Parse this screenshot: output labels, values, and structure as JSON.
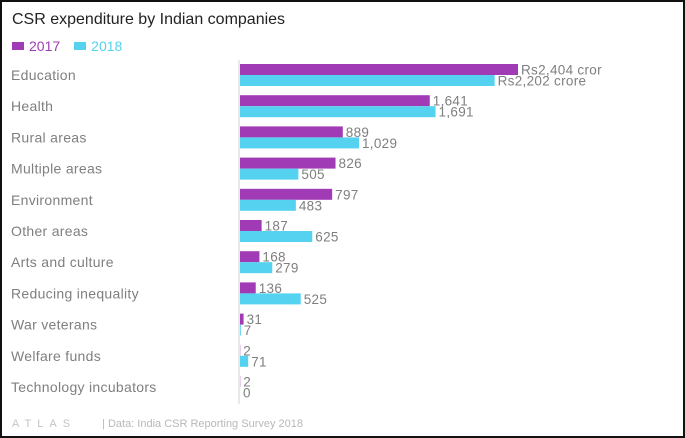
{
  "title": "CSR expenditure by Indian companies",
  "footer": {
    "logo": "ATLAS",
    "source": "| Data: India CSR Reporting Survey 2018"
  },
  "colors": {
    "2017": "#a13bb5",
    "2018": "#54d2f0"
  },
  "chart_data": {
    "type": "bar",
    "orientation": "horizontal",
    "title": "CSR expenditure by Indian companies",
    "categories": [
      "Education",
      "Health",
      "Rural areas",
      "Multiple areas",
      "Environment",
      "Other areas",
      "Arts and culture",
      "Reducing inequality",
      "War veterans",
      "Welfare funds",
      "Technology incubators"
    ],
    "series": [
      {
        "name": "2017",
        "color": "#a13bb5",
        "values": [
          2404,
          1641,
          889,
          826,
          797,
          187,
          168,
          136,
          31,
          2,
          2
        ],
        "labels": [
          "Rs2,404 cror",
          "1,641",
          "889",
          "826",
          "797",
          "187",
          "168",
          "136",
          "31",
          "2",
          "2"
        ]
      },
      {
        "name": "2018",
        "color": "#54d2f0",
        "values": [
          2202,
          1691,
          1029,
          505,
          483,
          625,
          279,
          525,
          7,
          71,
          0
        ],
        "labels": [
          "Rs2,202 crore",
          "1,691",
          "1,029",
          "505",
          "483",
          "625",
          "279",
          "525",
          "7",
          "71",
          "0"
        ]
      }
    ],
    "legend_position": "top-left",
    "grid": false
  }
}
